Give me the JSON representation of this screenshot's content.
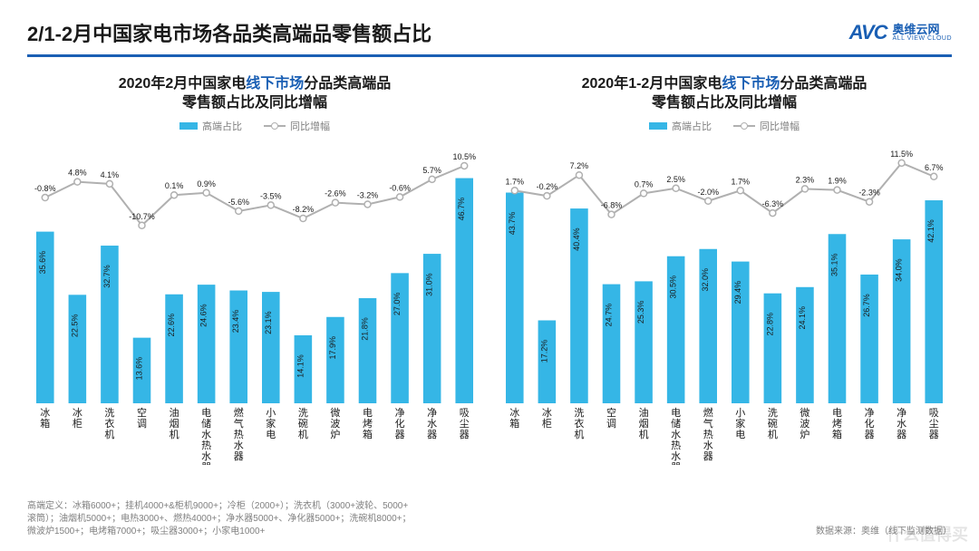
{
  "page_title": "2/1-2月中国家电市场各品类高端品零售额占比",
  "logo": {
    "mark": "AVC",
    "cn": "奥维云网",
    "en": "ALL VIEW CLOUD"
  },
  "legend": {
    "bar": "高端占比",
    "line": "同比增幅"
  },
  "colors": {
    "bar": "#35b6e6",
    "line": "#b0b0b0",
    "title_highlight": "#1a5fb4",
    "text": "#1a1a1a",
    "muted": "#808080",
    "bg": "#ffffff"
  },
  "plot": {
    "bar_ymax": 50,
    "line_ymin": -15,
    "line_ymax": 15,
    "bar_width_ratio": 0.55,
    "label_fontsize": 9,
    "axis_label_fontsize": 11
  },
  "chart_left": {
    "title_pre": "2020年2月中国家电",
    "title_hl": "线下市场",
    "title_post": "分品类高端品",
    "title_line2": "零售额占比及同比增幅",
    "categories": [
      "冰箱",
      "冰柜",
      "洗衣机",
      "空调",
      "油烟机",
      "电储水热水器",
      "燃气热水器",
      "小家电",
      "洗碗机",
      "微波炉",
      "电烤箱",
      "净化器",
      "净水器",
      "吸尘器"
    ],
    "bar_values": [
      35.6,
      22.5,
      32.7,
      13.6,
      22.6,
      24.6,
      23.4,
      23.1,
      14.1,
      17.9,
      21.8,
      27.0,
      31.0,
      46.7
    ],
    "line_values": [
      -0.8,
      4.8,
      4.1,
      -10.7,
      0.1,
      0.9,
      -5.6,
      -3.5,
      -8.2,
      -2.6,
      -3.2,
      -0.6,
      5.7,
      10.5
    ]
  },
  "chart_right": {
    "title_pre": "2020年1-2月中国家电",
    "title_hl": "线下市场",
    "title_post": "分品类高端品",
    "title_line2": "零售额占比及同比增幅",
    "categories": [
      "冰箱",
      "冰柜",
      "洗衣机",
      "空调",
      "油烟机",
      "电储水热水器",
      "燃气热水器",
      "小家电",
      "洗碗机",
      "微波炉",
      "电烤箱",
      "净化器",
      "净水器",
      "吸尘器"
    ],
    "bar_values": [
      43.7,
      17.2,
      40.4,
      24.7,
      25.3,
      30.5,
      32.0,
      29.4,
      22.8,
      24.1,
      35.1,
      26.7,
      34.0,
      42.1
    ],
    "line_values": [
      1.7,
      -0.2,
      7.2,
      -6.8,
      0.7,
      2.5,
      -2.0,
      1.7,
      -6.3,
      2.3,
      1.9,
      -2.3,
      11.5,
      6.7
    ]
  },
  "footnote_left_1": "高端定义：冰箱6000+；挂机4000+&柜机9000+；冷柜（2000+）；洗衣机（3000+波轮、5000+",
  "footnote_left_2": "滚筒）；油烟机5000+；电热3000+、燃热4000+；净水器5000+、净化器5000+；洗碗机8000+；",
  "footnote_left_3": "微波炉1500+；电烤箱7000+；吸尘器3000+；小家电1000+",
  "footnote_right": "数据来源：奥维（线下监测数据）",
  "wm_br": "什么值得买"
}
